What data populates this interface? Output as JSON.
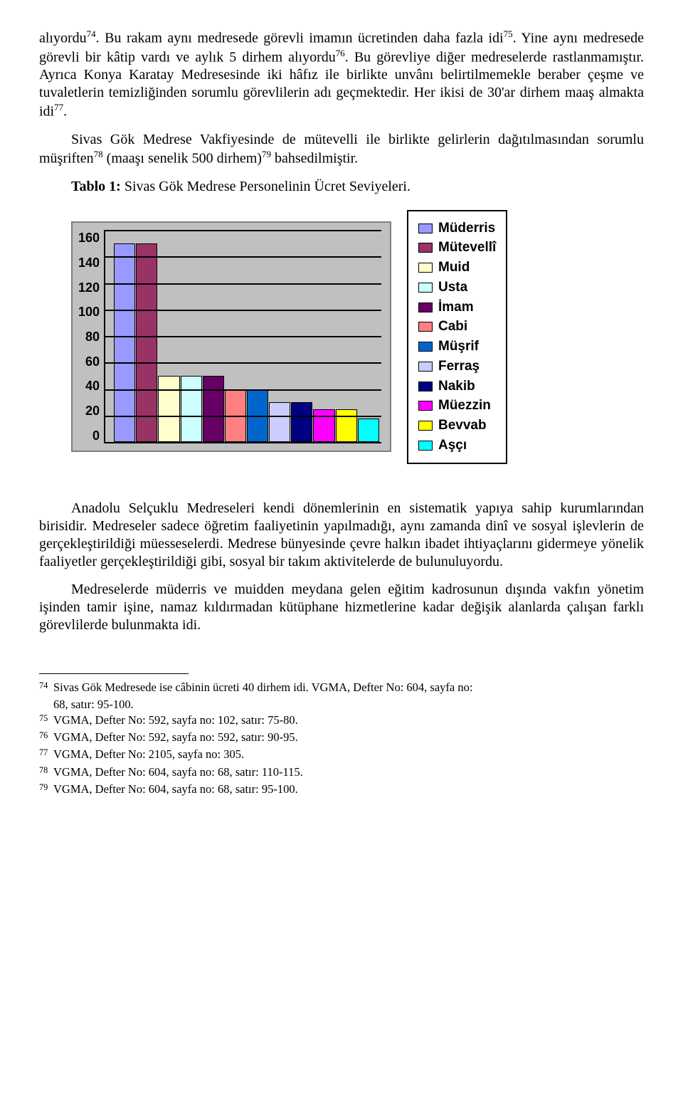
{
  "paragraphs": {
    "p1_a": "alıyordu",
    "p1_sup1": "74",
    "p1_b": ". Bu rakam aynı medresede görevli imamın ücretinden daha fazla idi",
    "p1_sup2": "75",
    "p1_c": ". Yine aynı medresede görevli bir kâtip vardı ve aylık 5 dirhem alıyordu",
    "p1_sup3": "76",
    "p1_d": ". Bu görevliye diğer medreselerde rastlanmamıştır. Ayrıca Konya Karatay Medresesinde iki hâfız ile birlikte unvânı belirtilmemekle beraber çeşme ve tuvaletlerin temizliğinden sorumlu görevlilerin adı geçmektedir. Her ikisi de 30'ar dirhem maaş almakta idi",
    "p1_sup4": "77",
    "p1_e": ".",
    "p2_a": "Sivas Gök Medrese Vakfiyesinde de mütevelli ile birlikte gelirlerin dağıtılmasından sorumlu müşriften",
    "p2_sup1": "78",
    "p2_b": " (maaşı senelik 500 dirhem)",
    "p2_sup2": "79",
    "p2_c": " bahsedilmiştir.",
    "tablo_label": "Tablo 1:",
    "tablo_title": " Sivas Gök Medrese Personelinin Ücret Seviyeleri.",
    "p3": "Anadolu Selçuklu Medreseleri kendi dönemlerinin en sistematik yapıya sahip kurumlarından birisidir. Medreseler sadece öğretim faaliyetinin yapılmadığı, aynı zamanda dinî ve sosyal işlevlerin de gerçekleştirildiği müesseselerdi. Medrese bünyesinde çevre halkın ibadet ihtiyaçlarını gidermeye yönelik faaliyetler gerçekleştirildiği gibi, sosyal bir takım aktivitelerde de bulunuluyordu.",
    "p4": "Medreselerde müderris ve muidden meydana gelen eğitim kadrosunun dışında vakfın yönetim işinden tamir işine, namaz kıldırmadan kütüphane hizmetlerine kadar değişik alanlarda çalışan farklı görevlilerde bulunmakta idi."
  },
  "chart": {
    "ymax": 160,
    "yticks": [
      "160",
      "140",
      "120",
      "100",
      "80",
      "60",
      "40",
      "20",
      "0"
    ],
    "grid_positions_pct": [
      0,
      12.5,
      25,
      37.5,
      50,
      62.5,
      75,
      87.5
    ],
    "bars": [
      {
        "label": "Müderris",
        "value": 150,
        "color": "#9999ff"
      },
      {
        "label": "Mütevellî",
        "value": 150,
        "color": "#993366"
      },
      {
        "label": "Muid",
        "value": 50,
        "color": "#ffffcc"
      },
      {
        "label": "Usta",
        "value": 50,
        "color": "#ccffff"
      },
      {
        "label": "İmam",
        "value": 50,
        "color": "#660066"
      },
      {
        "label": "Cabi",
        "value": 40,
        "color": "#ff8080"
      },
      {
        "label": "Müşrif",
        "value": 40,
        "color": "#0066cc"
      },
      {
        "label": "Ferraş",
        "value": 30,
        "color": "#ccccff"
      },
      {
        "label": "Nakib",
        "value": 30,
        "color": "#000080"
      },
      {
        "label": "Müezzin",
        "value": 25,
        "color": "#ff00ff"
      },
      {
        "label": "Bevvab",
        "value": 25,
        "color": "#ffff00"
      },
      {
        "label": "Aşçı",
        "value": 18,
        "color": "#00ffff"
      }
    ],
    "plot_bg": "#c0c0c0",
    "border_color": "#000000"
  },
  "footnotes": [
    {
      "num": "74",
      "text_a": "Sivas Gök Medresede ise câbinin ücreti 40 dirhem idi. VGMA, Defter No: 604, sayfa no:",
      "text_b": "68, satır: 95-100."
    },
    {
      "num": "75",
      "text_a": "VGMA, Defter No: 592, sayfa no: 102, satır: 75-80."
    },
    {
      "num": "76",
      "text_a": "VGMA, Defter No: 592, sayfa no: 592, satır: 90-95."
    },
    {
      "num": "77",
      "text_a": "VGMA, Defter No: 2105, sayfa no: 305."
    },
    {
      "num": "78",
      "text_a": "VGMA, Defter No: 604, sayfa no: 68, satır: 110-115."
    },
    {
      "num": "79",
      "text_a": "VGMA, Defter No: 604, sayfa no: 68, satır: 95-100."
    }
  ]
}
